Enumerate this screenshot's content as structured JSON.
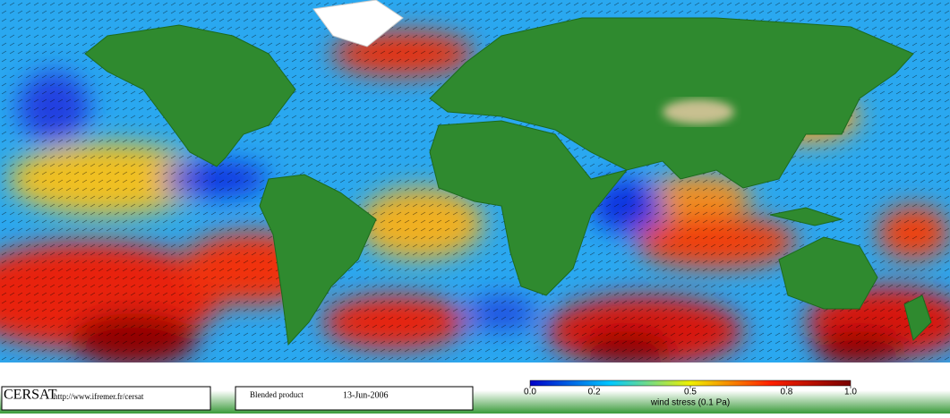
{
  "logo": "CERSAT",
  "url": "http://www.ifremer.fr/cersat",
  "product": "Blended product",
  "date": "13-Jun-2006",
  "colorbar": {
    "range": [
      0,
      1
    ],
    "ticks": [
      {
        "value": 0,
        "label": "0.0"
      },
      {
        "value": 0.2,
        "label": "0.2"
      },
      {
        "value": 0.5,
        "label": "0.5"
      },
      {
        "value": 0.8,
        "label": "0.8"
      },
      {
        "value": 1,
        "label": "1.0"
      }
    ],
    "label": "wind stress (0.1 Pa)"
  }
}
